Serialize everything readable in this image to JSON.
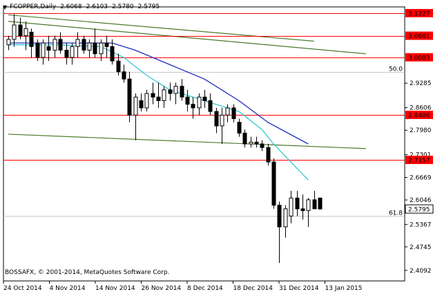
{
  "header": {
    "symbol": "FCOPPER,Daily",
    "open": "2.6068",
    "high": "2.6103",
    "low": "2.5780",
    "close": "2.5795"
  },
  "copyright": "BOSSAFX, © 2001-2014, MetaQuotes Software Corp.",
  "colors": {
    "background": "#ffffff",
    "candle": "#000000",
    "resistance_line": "#ff0000",
    "price_box": "#ff0000",
    "ma_fast": "#35c8d0",
    "ma_slow": "#1f2cbf",
    "trend_line": "#4a7a2a",
    "fib_line": "#c8c8c8"
  },
  "chart_data": {
    "type": "candlestick",
    "y_range": [
      2.38,
      3.14
    ],
    "y_ticks": [
      "2.9285",
      "2.8606",
      "2.7980",
      "2.7301",
      "2.6669",
      "2.6046",
      "2.5367",
      "2.4745",
      "2.4092"
    ],
    "x_ticks": [
      "24 Oct 2014",
      "4 Nov 2014",
      "14 Nov 2014",
      "26 Nov 2014",
      "8 Dec 2014",
      "18 Dec 2014",
      "31 Dec 2014",
      "13 Jan 2015"
    ],
    "current_price": "2.5795",
    "horizontal_levels": [
      {
        "label": "3.1227",
        "value": 3.1227
      },
      {
        "label": "3.0601",
        "value": 3.0601
      },
      {
        "label": "3.0003",
        "value": 3.0003
      },
      {
        "label": "2.8406",
        "value": 2.8406
      },
      {
        "label": "2.7157",
        "value": 2.7157
      }
    ],
    "fib_levels": [
      {
        "label": "50.0",
        "value": 2.9595
      },
      {
        "label": "61.8",
        "value": 2.5605
      }
    ],
    "candles": [
      {
        "o": 3.035,
        "h": 3.06,
        "l": 3.02,
        "c": 3.05
      },
      {
        "o": 3.05,
        "h": 3.12,
        "l": 3.03,
        "c": 3.09
      },
      {
        "o": 3.09,
        "h": 3.11,
        "l": 3.05,
        "c": 3.06
      },
      {
        "o": 3.06,
        "h": 3.1,
        "l": 3.02,
        "c": 3.08
      },
      {
        "o": 3.07,
        "h": 3.08,
        "l": 3.0,
        "c": 3.03
      },
      {
        "o": 3.04,
        "h": 3.05,
        "l": 2.99,
        "c": 3.0
      },
      {
        "o": 3.0,
        "h": 3.05,
        "l": 2.98,
        "c": 3.04
      },
      {
        "o": 3.03,
        "h": 3.06,
        "l": 2.99,
        "c": 3.02
      },
      {
        "o": 3.02,
        "h": 3.06,
        "l": 3.0,
        "c": 3.05
      },
      {
        "o": 3.05,
        "h": 3.07,
        "l": 3.01,
        "c": 3.02
      },
      {
        "o": 3.02,
        "h": 3.04,
        "l": 2.98,
        "c": 3.0
      },
      {
        "o": 3.0,
        "h": 3.04,
        "l": 2.98,
        "c": 3.03
      },
      {
        "o": 3.03,
        "h": 3.07,
        "l": 3.0,
        "c": 3.05
      },
      {
        "o": 3.05,
        "h": 3.06,
        "l": 3.01,
        "c": 3.02
      },
      {
        "o": 3.02,
        "h": 3.05,
        "l": 3.0,
        "c": 3.04
      },
      {
        "o": 3.04,
        "h": 3.08,
        "l": 3.0,
        "c": 3.01
      },
      {
        "o": 3.01,
        "h": 3.05,
        "l": 2.99,
        "c": 3.04
      },
      {
        "o": 3.04,
        "h": 3.06,
        "l": 3.0,
        "c": 3.03
      },
      {
        "o": 3.03,
        "h": 3.05,
        "l": 2.98,
        "c": 2.99
      },
      {
        "o": 2.99,
        "h": 3.01,
        "l": 2.95,
        "c": 2.96
      },
      {
        "o": 2.96,
        "h": 2.98,
        "l": 2.93,
        "c": 2.94
      },
      {
        "o": 2.94,
        "h": 2.96,
        "l": 2.82,
        "c": 2.84
      },
      {
        "o": 2.84,
        "h": 2.9,
        "l": 2.77,
        "c": 2.89
      },
      {
        "o": 2.88,
        "h": 2.9,
        "l": 2.85,
        "c": 2.86
      },
      {
        "o": 2.86,
        "h": 2.91,
        "l": 2.85,
        "c": 2.9
      },
      {
        "o": 2.9,
        "h": 2.93,
        "l": 2.87,
        "c": 2.89
      },
      {
        "o": 2.89,
        "h": 2.93,
        "l": 2.86,
        "c": 2.88
      },
      {
        "o": 2.88,
        "h": 2.92,
        "l": 2.86,
        "c": 2.91
      },
      {
        "o": 2.91,
        "h": 2.93,
        "l": 2.88,
        "c": 2.9
      },
      {
        "o": 2.9,
        "h": 2.93,
        "l": 2.87,
        "c": 2.92
      },
      {
        "o": 2.92,
        "h": 2.94,
        "l": 2.88,
        "c": 2.89
      },
      {
        "o": 2.89,
        "h": 2.91,
        "l": 2.85,
        "c": 2.87
      },
      {
        "o": 2.87,
        "h": 2.89,
        "l": 2.83,
        "c": 2.86
      },
      {
        "o": 2.86,
        "h": 2.9,
        "l": 2.84,
        "c": 2.89
      },
      {
        "o": 2.89,
        "h": 2.91,
        "l": 2.86,
        "c": 2.88
      },
      {
        "o": 2.88,
        "h": 2.9,
        "l": 2.84,
        "c": 2.85
      },
      {
        "o": 2.85,
        "h": 2.86,
        "l": 2.79,
        "c": 2.81
      },
      {
        "o": 2.81,
        "h": 2.86,
        "l": 2.76,
        "c": 2.84
      },
      {
        "o": 2.84,
        "h": 2.87,
        "l": 2.82,
        "c": 2.86
      },
      {
        "o": 2.86,
        "h": 2.87,
        "l": 2.82,
        "c": 2.83
      },
      {
        "o": 2.82,
        "h": 2.83,
        "l": 2.78,
        "c": 2.79
      },
      {
        "o": 2.79,
        "h": 2.8,
        "l": 2.75,
        "c": 2.76
      },
      {
        "o": 2.76,
        "h": 2.78,
        "l": 2.75,
        "c": 2.765
      },
      {
        "o": 2.765,
        "h": 2.78,
        "l": 2.75,
        "c": 2.76
      },
      {
        "o": 2.76,
        "h": 2.77,
        "l": 2.74,
        "c": 2.75
      },
      {
        "o": 2.75,
        "h": 2.76,
        "l": 2.7,
        "c": 2.71
      },
      {
        "o": 2.71,
        "h": 2.72,
        "l": 2.58,
        "c": 2.59
      },
      {
        "o": 2.59,
        "h": 2.6,
        "l": 2.43,
        "c": 2.53
      },
      {
        "o": 2.53,
        "h": 2.59,
        "l": 2.5,
        "c": 2.58
      },
      {
        "o": 2.56,
        "h": 2.63,
        "l": 2.54,
        "c": 2.61
      },
      {
        "o": 2.61,
        "h": 2.63,
        "l": 2.56,
        "c": 2.58
      },
      {
        "o": 2.58,
        "h": 2.62,
        "l": 2.55,
        "c": 2.575
      },
      {
        "o": 2.575,
        "h": 2.61,
        "l": 2.53,
        "c": 2.605
      },
      {
        "o": 2.605,
        "h": 2.63,
        "l": 2.58,
        "c": 2.58
      },
      {
        "o": 2.61,
        "h": 2.61,
        "l": 2.578,
        "c": 2.5795
      }
    ],
    "ma_fast": [
      {
        "i": 0,
        "v": 3.035
      },
      {
        "i": 8,
        "v": 3.035
      },
      {
        "i": 16,
        "v": 3.03
      },
      {
        "i": 20,
        "v": 3.0
      },
      {
        "i": 24,
        "v": 2.95
      },
      {
        "i": 28,
        "v": 2.91
      },
      {
        "i": 32,
        "v": 2.89
      },
      {
        "i": 36,
        "v": 2.87
      },
      {
        "i": 40,
        "v": 2.85
      },
      {
        "i": 44,
        "v": 2.8
      },
      {
        "i": 46,
        "v": 2.76
      },
      {
        "i": 49,
        "v": 2.71
      },
      {
        "i": 52,
        "v": 2.66
      }
    ],
    "ma_slow": [
      {
        "i": 0,
        "v": 3.04
      },
      {
        "i": 10,
        "v": 3.04
      },
      {
        "i": 18,
        "v": 3.04
      },
      {
        "i": 22,
        "v": 3.02
      },
      {
        "i": 28,
        "v": 2.98
      },
      {
        "i": 34,
        "v": 2.94
      },
      {
        "i": 40,
        "v": 2.88
      },
      {
        "i": 45,
        "v": 2.82
      },
      {
        "i": 52,
        "v": 2.76
      }
    ],
    "trend_lines": [
      {
        "name": "upper",
        "from": {
          "i": 0,
          "v": 3.118
        },
        "to": {
          "i": 53,
          "v": 3.045
        }
      },
      {
        "name": "upper2",
        "from": {
          "i": 0,
          "v": 3.1
        },
        "to": {
          "i": 62,
          "v": 3.01
        }
      },
      {
        "name": "lower",
        "from": {
          "i": 0,
          "v": 2.787
        },
        "to": {
          "i": 62,
          "v": 2.747
        }
      }
    ]
  }
}
